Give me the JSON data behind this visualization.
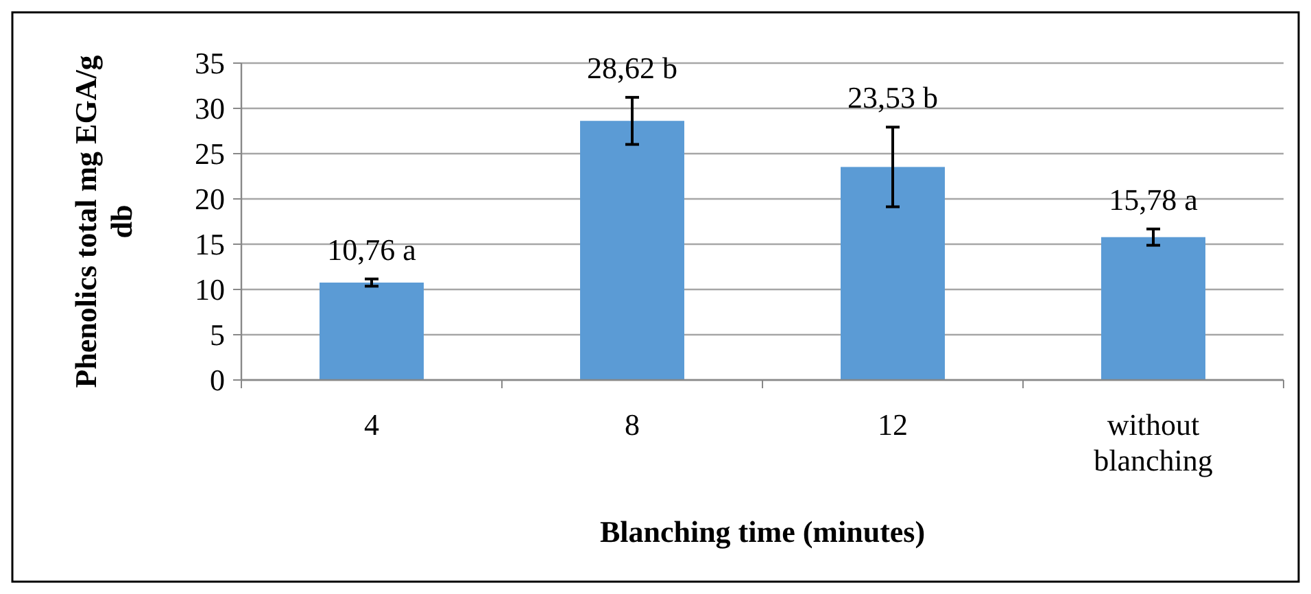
{
  "chart_data": {
    "type": "bar",
    "xlabel": "Blanching time (minutes)",
    "ylabel": "Phenolics total mg EGA/g db",
    "categories": [
      "4",
      "8",
      "12",
      "without blanching"
    ],
    "values": [
      10.76,
      28.62,
      23.53,
      15.78
    ],
    "errors": [
      0.4,
      2.6,
      4.4,
      0.9
    ],
    "value_labels": [
      "10,76 a",
      "28,62 b",
      "23,53 b",
      "15,78 a"
    ],
    "color": "#5b9bd5",
    "ylim": [
      0,
      35
    ],
    "yticks": [
      0,
      5,
      10,
      15,
      20,
      25,
      30,
      35
    ],
    "grid": "y"
  }
}
